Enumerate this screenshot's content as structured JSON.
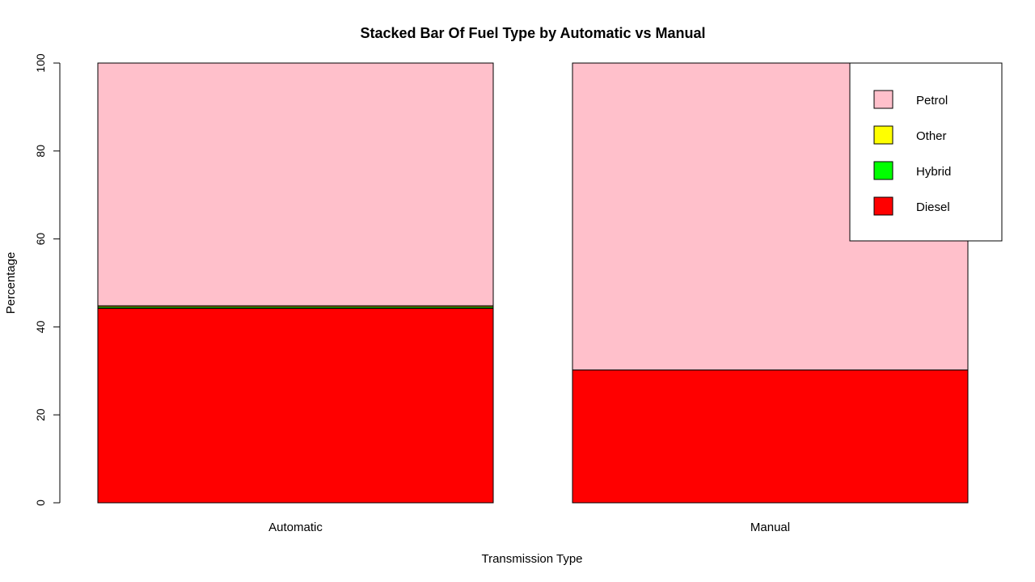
{
  "chart_data": {
    "type": "bar",
    "stacked": true,
    "title": "Stacked Bar Of Fuel Type by Automatic vs Manual",
    "xlabel": "Transmission Type",
    "ylabel": "Percentage",
    "ylim": [
      0,
      100
    ],
    "yticks": [
      "0",
      "20",
      "40",
      "60",
      "80",
      "100"
    ],
    "categories": [
      "Automatic",
      "Manual"
    ],
    "series": [
      {
        "name": "Diesel",
        "color": "#ff0000",
        "values": [
          44.2,
          30.2
        ]
      },
      {
        "name": "Hybrid",
        "color": "#00ff00",
        "values": [
          0.3,
          0.0
        ]
      },
      {
        "name": "Other",
        "color": "#ffff00",
        "values": [
          0.3,
          0.0
        ]
      },
      {
        "name": "Petrol",
        "color": "#ffc0cb",
        "values": [
          55.2,
          69.8
        ]
      }
    ],
    "legend": {
      "position": "top-right",
      "order": [
        "Petrol",
        "Other",
        "Hybrid",
        "Diesel"
      ]
    },
    "grid": false
  }
}
